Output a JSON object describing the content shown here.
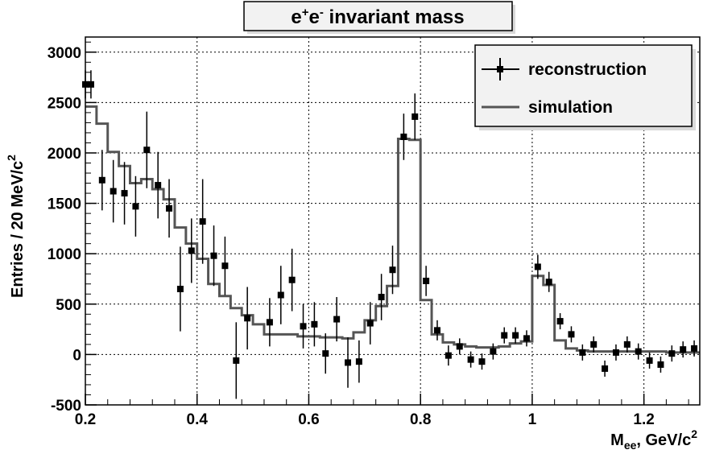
{
  "chart_data": {
    "type": "scatter",
    "title": "invariant mass",
    "title_prefix": "e",
    "title_sup1": "+",
    "title_mid": "e",
    "title_sup2": "-",
    "xlabel": "M",
    "xlabel_sub": "ee",
    "xlabel_rest": ", GeV/c",
    "xlabel_sup": "2",
    "ylabel": "Entries / 20 MeV/c",
    "ylabel_sup": "2",
    "xlim": [
      0.2,
      1.3
    ],
    "ylim": [
      -500,
      3150
    ],
    "x_ticks": [
      0.2,
      0.4,
      0.6,
      0.8,
      1.0,
      1.2
    ],
    "x_tick_labels": [
      "0.2",
      "0.4",
      "0.6",
      "0.8",
      "1",
      "1.2"
    ],
    "y_ticks": [
      -500,
      0,
      500,
      1000,
      1500,
      2000,
      2500,
      3000
    ],
    "y_tick_labels": [
      "-500",
      "0",
      "500",
      "1000",
      "1500",
      "2000",
      "2500",
      "3000"
    ],
    "grid": true,
    "legend_position": "top-right",
    "series": [
      {
        "name": "reconstruction",
        "style": "points-with-errors",
        "color": "#000000",
        "x": [
          0.2,
          0.21,
          0.23,
          0.25,
          0.27,
          0.29,
          0.31,
          0.33,
          0.35,
          0.37,
          0.39,
          0.41,
          0.43,
          0.45,
          0.47,
          0.49,
          0.53,
          0.55,
          0.57,
          0.59,
          0.61,
          0.63,
          0.65,
          0.67,
          0.69,
          0.71,
          0.73,
          0.75,
          0.77,
          0.79,
          0.81,
          0.83,
          0.85,
          0.87,
          0.89,
          0.91,
          0.93,
          0.95,
          0.97,
          0.99,
          1.01,
          1.03,
          1.05,
          1.07,
          1.09,
          1.11,
          1.13,
          1.15,
          1.17,
          1.19,
          1.21,
          1.23,
          1.25,
          1.27,
          1.29
        ],
        "y": [
          2680,
          2680,
          1730,
          1620,
          1600,
          1470,
          2030,
          1680,
          1450,
          650,
          1030,
          1320,
          980,
          880,
          -60,
          360,
          320,
          590,
          740,
          280,
          300,
          10,
          350,
          -80,
          -70,
          310,
          570,
          840,
          2160,
          2360,
          730,
          240,
          -10,
          80,
          -50,
          -70,
          30,
          190,
          190,
          160,
          870,
          720,
          330,
          200,
          20,
          100,
          -140,
          20,
          100,
          30,
          -60,
          -100,
          10,
          50,
          60
        ],
        "err": [
          140,
          140,
          300,
          310,
          310,
          300,
          380,
          330,
          290,
          420,
          320,
          420,
          300,
          290,
          380,
          310,
          240,
          290,
          310,
          220,
          220,
          200,
          220,
          250,
          210,
          210,
          230,
          240,
          230,
          230,
          150,
          100,
          100,
          80,
          80,
          80,
          80,
          80,
          80,
          80,
          120,
          100,
          80,
          80,
          80,
          80,
          80,
          80,
          80,
          80,
          80,
          80,
          80,
          80,
          80
        ]
      },
      {
        "name": "simulation",
        "style": "histogram-step",
        "color": "#555555",
        "edges": [
          0.2,
          0.22,
          0.24,
          0.26,
          0.28,
          0.3,
          0.32,
          0.34,
          0.36,
          0.38,
          0.4,
          0.42,
          0.44,
          0.46,
          0.48,
          0.5,
          0.52,
          0.54,
          0.56,
          0.58,
          0.6,
          0.62,
          0.64,
          0.66,
          0.68,
          0.7,
          0.72,
          0.74,
          0.76,
          0.78,
          0.8,
          0.82,
          0.84,
          0.86,
          0.88,
          0.9,
          0.92,
          0.94,
          0.96,
          0.98,
          1.0,
          1.02,
          1.04,
          1.06,
          1.08,
          1.1,
          1.12,
          1.14,
          1.16,
          1.18,
          1.2,
          1.22,
          1.24,
          1.26,
          1.28,
          1.3
        ],
        "values": [
          2460,
          2290,
          2010,
          1870,
          1700,
          1740,
          1640,
          1540,
          1260,
          1100,
          950,
          700,
          580,
          460,
          390,
          300,
          200,
          200,
          200,
          180,
          180,
          170,
          170,
          160,
          220,
          340,
          480,
          680,
          2140,
          2130,
          540,
          200,
          120,
          100,
          80,
          70,
          70,
          80,
          110,
          130,
          780,
          690,
          140,
          60,
          40,
          30,
          30,
          30,
          30,
          30,
          30,
          30,
          20,
          20,
          20
        ]
      }
    ]
  }
}
